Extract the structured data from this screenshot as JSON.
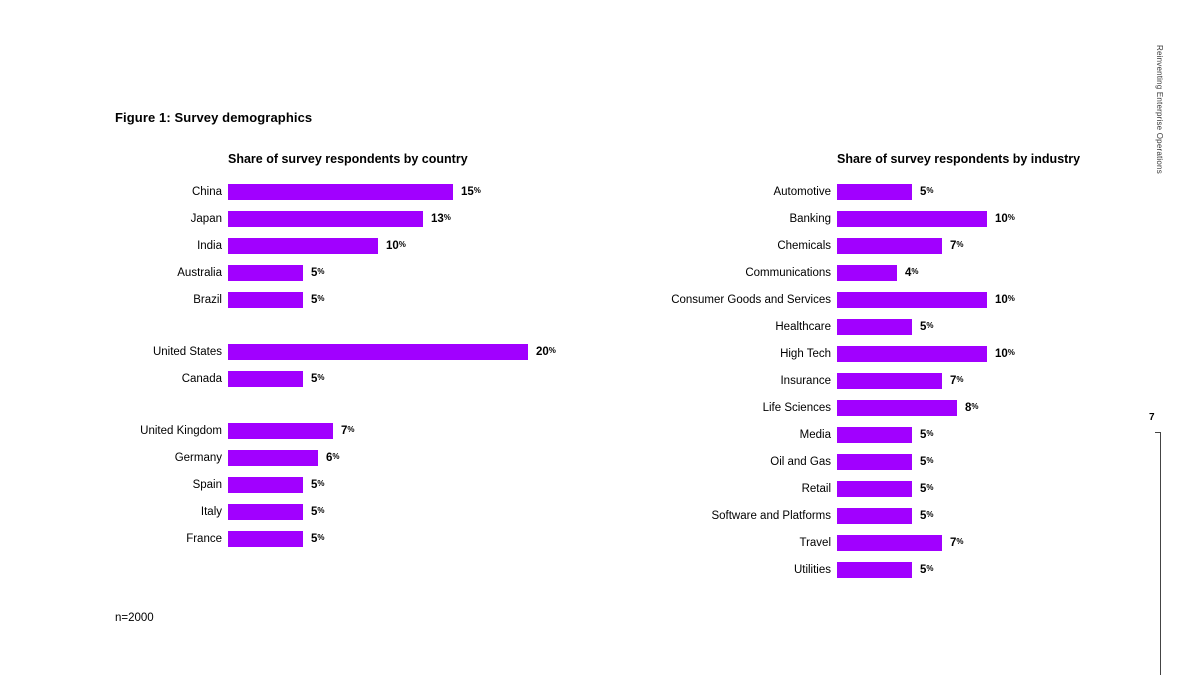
{
  "figure_title": "Figure 1: Survey demographics",
  "footnote": "n=2000",
  "sidebar": {
    "vertical_text": "Reinventing Enterprise Operations",
    "page_number": "7"
  },
  "colors": {
    "bar": "#a100ff"
  },
  "chart_data": [
    {
      "type": "bar",
      "orientation": "horizontal",
      "title": "Share of survey respondents by country",
      "unit": "%",
      "xlim": [
        0,
        20
      ],
      "grid": false,
      "legend": false,
      "groups": [
        {
          "items": [
            {
              "label": "China",
              "value": 15
            },
            {
              "label": "Japan",
              "value": 13
            },
            {
              "label": "India",
              "value": 10
            },
            {
              "label": "Australia",
              "value": 5
            },
            {
              "label": "Brazil",
              "value": 5
            }
          ]
        },
        {
          "items": [
            {
              "label": "United States",
              "value": 20
            },
            {
              "label": "Canada",
              "value": 5
            }
          ]
        },
        {
          "items": [
            {
              "label": "United Kingdom",
              "value": 7
            },
            {
              "label": "Germany",
              "value": 6
            },
            {
              "label": "Spain",
              "value": 5
            },
            {
              "label": "Italy",
              "value": 5
            },
            {
              "label": "France",
              "value": 5
            }
          ]
        }
      ]
    },
    {
      "type": "bar",
      "orientation": "horizontal",
      "title": "Share of survey respondents by industry",
      "unit": "%",
      "xlim": [
        0,
        10
      ],
      "grid": false,
      "legend": false,
      "groups": [
        {
          "items": [
            {
              "label": "Automotive",
              "value": 5
            },
            {
              "label": "Banking",
              "value": 10
            },
            {
              "label": "Chemicals",
              "value": 7
            },
            {
              "label": "Communications",
              "value": 4
            },
            {
              "label": "Consumer Goods and Services",
              "value": 10
            },
            {
              "label": "Healthcare",
              "value": 5
            },
            {
              "label": "High Tech",
              "value": 10
            },
            {
              "label": "Insurance",
              "value": 7
            },
            {
              "label": "Life Sciences",
              "value": 8
            },
            {
              "label": "Media",
              "value": 5
            },
            {
              "label": "Oil and Gas",
              "value": 5
            },
            {
              "label": "Retail",
              "value": 5
            },
            {
              "label": "Software and Platforms",
              "value": 5
            },
            {
              "label": "Travel",
              "value": 7
            },
            {
              "label": "Utilities",
              "value": 5
            }
          ]
        }
      ]
    }
  ]
}
